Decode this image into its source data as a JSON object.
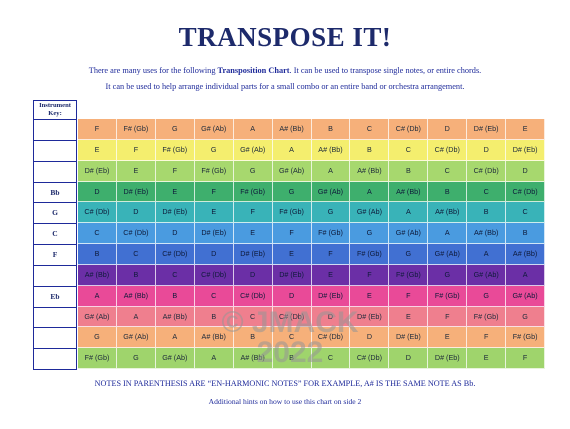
{
  "title": "TRANSPOSE IT!",
  "intro": {
    "line1_pre": "There are many uses for the following ",
    "line1_bold": "Transposition Chart",
    "line1_post": ".  It can be used to transpose single notes, or entire chords.",
    "line2": "It can be used to help arrange individual parts for a small combo or an entire band or orchestra arrangement."
  },
  "key_header": "Instrument Key:",
  "instrument_keys": [
    "",
    "",
    "",
    "Bb",
    "G",
    "C",
    "F",
    "",
    "Eb",
    "",
    "",
    ""
  ],
  "columns": 12,
  "rows": [
    {
      "color": "#f6b07a",
      "cells": [
        "F",
        "F# (Gb)",
        "G",
        "G# (Ab)",
        "A",
        "A# (Bb)",
        "B",
        "C",
        "C# (Db)",
        "D",
        "D# (Eb)",
        "E"
      ]
    },
    {
      "color": "#f4ee6e",
      "cells": [
        "E",
        "F",
        "F# (Gb)",
        "G",
        "G# (Ab)",
        "A",
        "A# (Bb)",
        "B",
        "C",
        "C# (Db)",
        "D",
        "D# (Eb)"
      ]
    },
    {
      "color": "#a7d86e",
      "cells": [
        "D# (Eb)",
        "E",
        "F",
        "F# (Gb)",
        "G",
        "G# (Ab)",
        "A",
        "A# (Bb)",
        "B",
        "C",
        "C# (Db)",
        "D"
      ]
    },
    {
      "color": "#3eaf6d",
      "cells": [
        "D",
        "D# (Eb)",
        "E",
        "F",
        "F# (Gb)",
        "G",
        "G# (Ab)",
        "A",
        "A# (Bb)",
        "B",
        "C",
        "C# (Db)"
      ]
    },
    {
      "color": "#39b3b8",
      "cells": [
        "C# (Db)",
        "D",
        "D# (Eb)",
        "E",
        "F",
        "F# (Gb)",
        "G",
        "G# (Ab)",
        "A",
        "A# (Bb)",
        "B",
        "C"
      ]
    },
    {
      "color": "#4a9be0",
      "cells": [
        "C",
        "C# (Db)",
        "D",
        "D# (Eb)",
        "E",
        "F",
        "F# (Gb)",
        "G",
        "G# (Ab)",
        "A",
        "A# (Bb)",
        "B"
      ]
    },
    {
      "color": "#4170d2",
      "cells": [
        "B",
        "C",
        "C# (Db)",
        "D",
        "D# (Eb)",
        "E",
        "F",
        "F# (Gb)",
        "G",
        "G# (Ab)",
        "A",
        "A# (Bb)"
      ]
    },
    {
      "color": "#6b2fa6",
      "cells": [
        "A# (Bb)",
        "B",
        "C",
        "C# (Db)",
        "D",
        "D# (Eb)",
        "E",
        "F",
        "F# (Gb)",
        "G",
        "G# (Ab)",
        "A"
      ]
    },
    {
      "color": "#e94a98",
      "cells": [
        "A",
        "A# (Bb)",
        "B",
        "C",
        "C# (Db)",
        "D",
        "D# (Eb)",
        "E",
        "F",
        "F# (Gb)",
        "G",
        "G# (Ab)"
      ]
    },
    {
      "color": "#ef7f8e",
      "cells": [
        "G# (Ab)",
        "A",
        "A# (Bb)",
        "B",
        "C",
        "C# (Db)",
        "D",
        "D# (Eb)",
        "E",
        "F",
        "F# (Gb)",
        "G"
      ]
    },
    {
      "color": "#f6b07a",
      "cells": [
        "G",
        "G# (Ab)",
        "A",
        "A# (Bb)",
        "B",
        "C",
        "C# (Db)",
        "D",
        "D# (Eb)",
        "E",
        "F",
        "F# (Gb)"
      ]
    },
    {
      "color": "#9fd46c",
      "cells": [
        "F# (Gb)",
        "G",
        "G# (Ab)",
        "A",
        "A# (Bb)",
        "B",
        "C",
        "C# (Db)",
        "D",
        "D# (Eb)",
        "E",
        "F"
      ]
    }
  ],
  "note1": "NOTES IN PARENTHESIS ARE “EN-HARMONIC NOTES”  FOR EXAMPLE, A# IS THE SAME NOTE AS Bb.",
  "note2": "Additional hints on how to use this chart on side 2",
  "watermark": {
    "line1": "© JMACK",
    "line2": "2022"
  }
}
